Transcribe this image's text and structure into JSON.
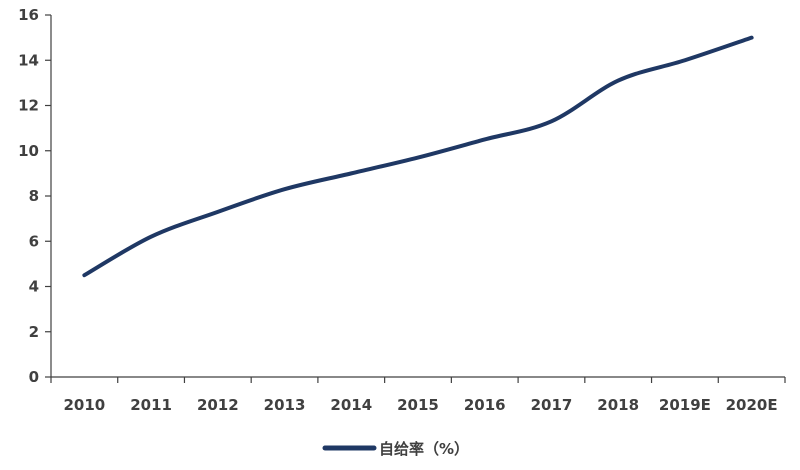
{
  "chart_data": {
    "type": "line",
    "categories": [
      "2010",
      "2011",
      "2012",
      "2013",
      "2014",
      "2015",
      "2016",
      "2017",
      "2018",
      "2019E",
      "2020E"
    ],
    "series": [
      {
        "name": "自给率（%）",
        "color": "#1f3864",
        "values": [
          4.5,
          6.2,
          7.3,
          8.3,
          9.0,
          9.7,
          10.5,
          11.3,
          13.1,
          14.0,
          15.0
        ]
      }
    ],
    "yticks": [
      "0",
      "2",
      "4",
      "6",
      "8",
      "10",
      "12",
      "14",
      "16"
    ],
    "ylim": [
      0,
      16
    ],
    "grid": false,
    "legend": "bottom",
    "title": "",
    "xlabel": "",
    "ylabel": ""
  }
}
